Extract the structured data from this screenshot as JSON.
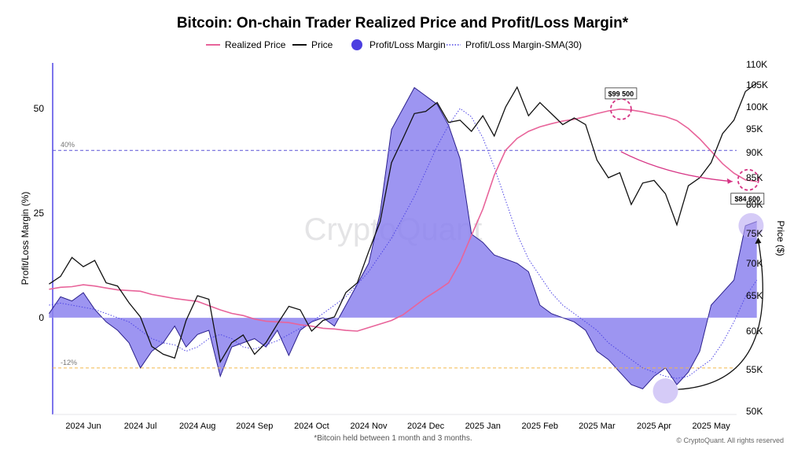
{
  "colors": {
    "realized": "#e8649a",
    "price": "#111111",
    "margin_fill": "#8c82ef",
    "margin_stroke": "#2a1f8c",
    "sma": "#4f46e5",
    "upper_ref": "#5b54d6",
    "lower_ref": "#f2b84b",
    "annotation": "#d63384",
    "highlight": "#b9a8f2"
  },
  "chart_data": {
    "type": "line",
    "title": "Bitcoin: On-chain Trader Realized Price and Profit/Loss Margin*",
    "legend": {
      "position": "top",
      "items": [
        {
          "label": "Realized Price",
          "icon": "line-icon"
        },
        {
          "label": "Price",
          "icon": "line-icon"
        },
        {
          "label": "Profit/Loss Margin",
          "icon": "filled-circle-icon"
        },
        {
          "label": "Profit/Loss Margin-SMA(30)",
          "icon": "dotted-line-icon"
        }
      ]
    },
    "ylabel_left": "Profit/Loss Margin (%)",
    "ylabel_right": "Price ($)",
    "left_ticks": [
      "50",
      "25",
      "0"
    ],
    "left_tick_values": [
      50,
      25,
      0
    ],
    "right_ticks": [
      "110K",
      "105K",
      "100K",
      "95K",
      "90K",
      "85K",
      "80K",
      "75K",
      "70K",
      "65K",
      "60K",
      "55K",
      "50K"
    ],
    "right_tick_values": [
      110000,
      105000,
      100000,
      95000,
      90000,
      85000,
      80000,
      75000,
      70000,
      65000,
      60000,
      55000,
      50000
    ],
    "x_ticks": [
      "2024 Jun",
      "2024 Jul",
      "2024 Aug",
      "2024 Sep",
      "2024 Oct",
      "2024 Nov",
      "2024 Dec",
      "2025 Jan",
      "2025 Feb",
      "2025 Mar",
      "2025 Apr",
      "2025 May"
    ],
    "ref_lines": [
      {
        "label": "40%",
        "value": 40
      },
      {
        "label": "-12%",
        "value": -12
      }
    ],
    "annotations": [
      {
        "label": "$99 500",
        "month": 9.42,
        "price": 99500
      },
      {
        "label": "$84 600",
        "month": 11.65,
        "price": 84600
      }
    ],
    "footnote": "*Bitcoin held between 1 month and 3 months.",
    "credit": "© CryptoQuant. All rights reserved",
    "watermark": "CryptoQuant",
    "series": [
      {
        "name": "Price",
        "x": [
          -0.6,
          -0.4,
          -0.2,
          0,
          0.2,
          0.4,
          0.6,
          0.8,
          1,
          1.2,
          1.4,
          1.6,
          1.8,
          2,
          2.2,
          2.4,
          2.6,
          2.8,
          3,
          3.2,
          3.4,
          3.6,
          3.8,
          4,
          4.2,
          4.4,
          4.6,
          4.8,
          5,
          5.2,
          5.4,
          5.6,
          5.8,
          6,
          6.2,
          6.4,
          6.6,
          6.8,
          7,
          7.2,
          7.4,
          7.6,
          7.8,
          8,
          8.2,
          8.4,
          8.6,
          8.8,
          9,
          9.2,
          9.4,
          9.6,
          9.8,
          10,
          10.2,
          10.4,
          10.6,
          10.8,
          11,
          11.2,
          11.4,
          11.6,
          11.8
        ],
        "values": [
          66800,
          68000,
          71000,
          69500,
          70500,
          67000,
          66500,
          64000,
          62000,
          58000,
          57000,
          56500,
          61500,
          65000,
          64500,
          56000,
          58500,
          59500,
          57000,
          58500,
          61000,
          63500,
          63000,
          60000,
          61500,
          62000,
          65500,
          67000,
          72000,
          77000,
          88000,
          93000,
          98500,
          99000,
          101000,
          96500,
          97000,
          94500,
          98000,
          93500,
          100000,
          104500,
          98000,
          101000,
          98500,
          96000,
          97500,
          96000,
          88500,
          85000,
          86000,
          80000,
          84000,
          84500,
          82000,
          76500,
          83500,
          85000,
          88000,
          94000,
          97000,
          103500,
          105500
        ]
      },
      {
        "name": "Realized Price",
        "x": [
          -0.6,
          -0.4,
          -0.2,
          0,
          0.2,
          0.4,
          0.6,
          0.8,
          1,
          1.2,
          1.4,
          1.6,
          1.8,
          2,
          2.2,
          2.4,
          2.6,
          2.8,
          3,
          3.2,
          3.4,
          3.6,
          3.8,
          4,
          4.2,
          4.4,
          4.6,
          4.8,
          5,
          5.2,
          5.4,
          5.6,
          5.8,
          6,
          6.2,
          6.4,
          6.6,
          6.8,
          7,
          7.2,
          7.4,
          7.6,
          7.8,
          8,
          8.2,
          8.4,
          8.6,
          8.8,
          9,
          9.2,
          9.4,
          9.6,
          9.8,
          10,
          10.2,
          10.4,
          10.6,
          10.8,
          11,
          11.2,
          11.4,
          11.6,
          11.8
        ],
        "values": [
          66000,
          66300,
          66400,
          66700,
          66500,
          66200,
          65900,
          65800,
          65700,
          65200,
          64900,
          64600,
          64400,
          64200,
          63600,
          63000,
          62500,
          62200,
          61700,
          61400,
          61300,
          61200,
          60900,
          60700,
          60400,
          60300,
          60100,
          60000,
          60500,
          61000,
          61500,
          62300,
          63500,
          64700,
          65800,
          67000,
          70200,
          74700,
          79200,
          85500,
          90500,
          93000,
          94500,
          95500,
          96200,
          96800,
          97200,
          97800,
          98500,
          99100,
          99500,
          99300,
          98900,
          98300,
          97800,
          96900,
          95100,
          92900,
          90300,
          87800,
          85900,
          84600,
          84300
        ]
      },
      {
        "name": "Profit/Loss Margin",
        "x": [
          -0.6,
          -0.4,
          -0.2,
          0,
          0.2,
          0.4,
          0.6,
          0.8,
          1,
          1.2,
          1.4,
          1.6,
          1.8,
          2,
          2.2,
          2.4,
          2.6,
          2.8,
          3,
          3.2,
          3.4,
          3.6,
          3.8,
          4,
          4.2,
          4.4,
          4.6,
          4.8,
          5,
          5.2,
          5.4,
          5.6,
          5.8,
          6,
          6.2,
          6.4,
          6.6,
          6.8,
          7,
          7.2,
          7.4,
          7.6,
          7.8,
          8,
          8.2,
          8.4,
          8.6,
          8.8,
          9,
          9.2,
          9.4,
          9.6,
          9.8,
          10,
          10.2,
          10.4,
          10.6,
          10.8,
          11,
          11.2,
          11.4,
          11.6,
          11.8
        ],
        "values": [
          1,
          5,
          4,
          6,
          2,
          -1,
          -3,
          -6,
          -12,
          -8,
          -6,
          -2,
          -7,
          -4,
          -3,
          -14,
          -7,
          -6,
          -5,
          -7,
          -3,
          -9,
          -3,
          -1,
          0,
          -2,
          3,
          8,
          13,
          25,
          45,
          50,
          55,
          53,
          51,
          46,
          38,
          20,
          18,
          15,
          14,
          13,
          11,
          3,
          1,
          0,
          -1,
          -3,
          -8,
          -10,
          -13,
          -16,
          -17,
          -14,
          -12,
          -16,
          -13,
          -8,
          3,
          6,
          9,
          22,
          23
        ]
      },
      {
        "name": "Profit/Loss Margin-SMA(30)",
        "x": [
          -0.6,
          -0.4,
          -0.2,
          0,
          0.2,
          0.4,
          0.6,
          0.8,
          1,
          1.2,
          1.4,
          1.6,
          1.8,
          2,
          2.2,
          2.4,
          2.6,
          2.8,
          3,
          3.2,
          3.4,
          3.6,
          3.8,
          4,
          4.2,
          4.4,
          4.6,
          4.8,
          5,
          5.2,
          5.4,
          5.6,
          5.8,
          6,
          6.2,
          6.4,
          6.6,
          6.8,
          7,
          7.2,
          7.4,
          7.6,
          7.8,
          8,
          8.2,
          8.4,
          8.6,
          8.8,
          9,
          9.2,
          9.4,
          9.6,
          9.8,
          10,
          10.2,
          10.4,
          10.6,
          10.8,
          11,
          11.2,
          11.4,
          11.6,
          11.8
        ],
        "values": [
          3,
          3.5,
          3,
          2.5,
          2,
          1,
          0,
          -1,
          -3,
          -5,
          -6,
          -6.5,
          -8,
          -7,
          -5,
          -4,
          -5,
          -7,
          -7.5,
          -6.5,
          -5.5,
          -4,
          -2.5,
          -1,
          1,
          3,
          5,
          8,
          11,
          15,
          19,
          24,
          29,
          35,
          41,
          46,
          50,
          48,
          43,
          36,
          28,
          20,
          14,
          10,
          6,
          3,
          1,
          -1,
          -3,
          -6,
          -8,
          -10,
          -12,
          -13,
          -14,
          -14.5,
          -14,
          -12,
          -10,
          -6,
          -1,
          5,
          9
        ]
      }
    ]
  }
}
